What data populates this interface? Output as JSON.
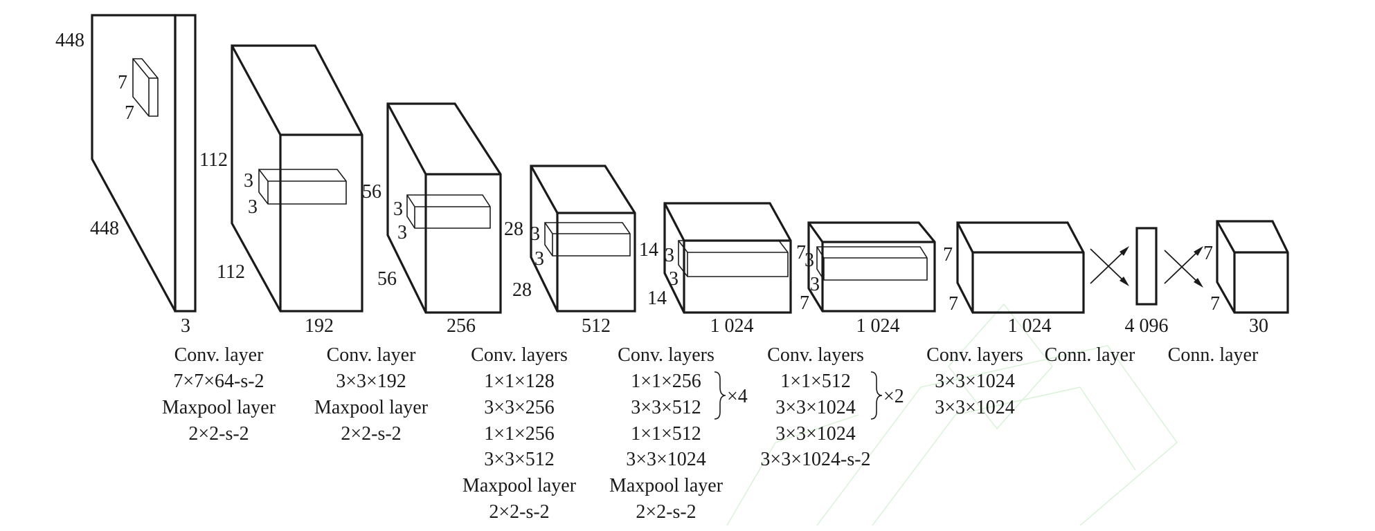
{
  "volumes": [
    {
      "depth_label": "3",
      "height_labels": [
        "448"
      ],
      "width_labels": [
        "448"
      ],
      "kernel_labels": [
        "7",
        "7"
      ],
      "caption": [
        "Conv. layer",
        "7×7×64-s-2",
        "Maxpool layer",
        "2×2-s-2"
      ]
    },
    {
      "depth_label": "192",
      "height_labels": [
        "112"
      ],
      "width_labels": [
        "112"
      ],
      "kernel_labels": [
        "3",
        "3"
      ],
      "caption": [
        "Conv. layer",
        "3×3×192",
        "Maxpool layer",
        "2×2-s-2"
      ]
    },
    {
      "depth_label": "256",
      "height_labels": [
        "56"
      ],
      "width_labels": [
        "56"
      ],
      "kernel_labels": [
        "3",
        "3"
      ],
      "caption": [
        "Conv. layers",
        "1×1×128",
        "3×3×256",
        "1×1×256",
        "3×3×512",
        "Maxpool layer",
        "2×2-s-2"
      ]
    },
    {
      "depth_label": "512",
      "height_labels": [
        "28"
      ],
      "width_labels": [
        "28"
      ],
      "kernel_labels": [
        "3",
        "3"
      ],
      "caption": [
        "Conv. layers",
        "1×1×256",
        "3×3×512",
        "1×1×512",
        "3×3×1024",
        "Maxpool layer",
        "2×2-s-2"
      ],
      "repeat": "×4"
    },
    {
      "depth_label": "1 024",
      "height_labels": [
        "14"
      ],
      "width_labels": [
        "14"
      ],
      "kernel_labels": [
        "3",
        "3"
      ],
      "caption": [
        "Conv. layers",
        "1×1×512",
        "3×3×1024",
        "3×3×1024",
        "3×3×1024-s-2"
      ],
      "repeat": "×2"
    },
    {
      "depth_label": "1 024",
      "height_labels": [
        "7"
      ],
      "width_labels": [
        "7"
      ],
      "kernel_labels": [
        "3",
        "3"
      ],
      "caption": [
        "Conv. layers",
        "3×3×1024",
        "3×3×1024"
      ]
    },
    {
      "depth_label": "1 024",
      "height_labels": [
        "7"
      ],
      "width_labels": [
        "7"
      ],
      "caption": [
        "Conn. layer"
      ]
    },
    {
      "depth_label": "4 096",
      "caption": [
        "Conn. layer"
      ]
    },
    {
      "depth_label": "30",
      "height_labels": [
        "7"
      ],
      "width_labels": [
        "7"
      ]
    }
  ]
}
